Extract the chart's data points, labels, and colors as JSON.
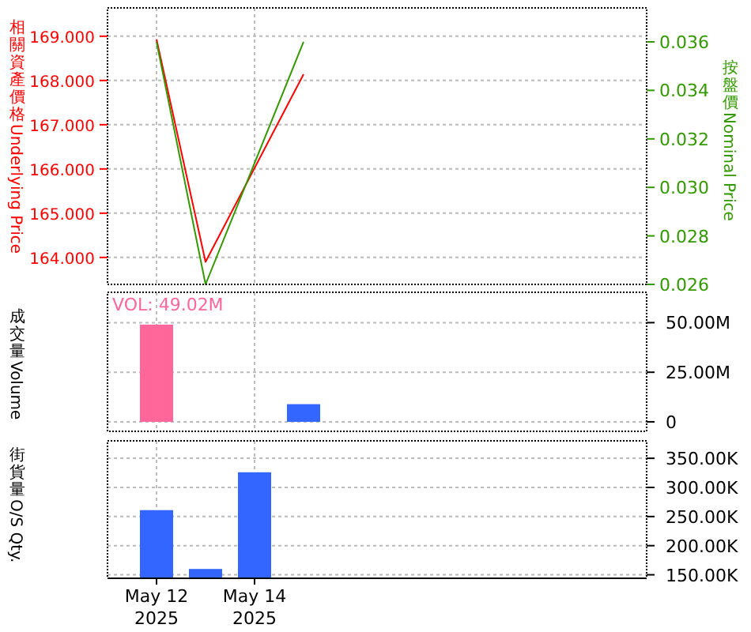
{
  "chart_data": [
    {
      "type": "line",
      "ylabel": "相關資產價格Underlying Price",
      "y2label": "按盤價Nominal Price",
      "xlim": [
        "2025-05-11",
        "2025-05-22"
      ],
      "xticks": [
        {
          "value": "2025-05-12",
          "label": null
        },
        {
          "value": "2025-05-14",
          "label": null
        }
      ],
      "ylim": [
        163.39,
        169.64
      ],
      "yticks": [
        {
          "value": 164,
          "label": "164.000"
        },
        {
          "value": 165,
          "label": "165.000"
        },
        {
          "value": 166,
          "label": "166.000"
        },
        {
          "value": 167,
          "label": "167.000"
        },
        {
          "value": 168,
          "label": "168.000"
        },
        {
          "value": 169,
          "label": "169.000"
        }
      ],
      "y2lim": [
        0.026,
        0.0374
      ],
      "y2ticks": [
        {
          "value": 0.026,
          "label": "0.026"
        },
        {
          "value": 0.028,
          "label": "0.028"
        },
        {
          "value": 0.03,
          "label": "0.030"
        },
        {
          "value": 0.032,
          "label": "0.032"
        },
        {
          "value": 0.034,
          "label": "0.034"
        },
        {
          "value": 0.036,
          "label": "0.036"
        }
      ],
      "grid": true,
      "tick_labels": "y",
      "series": [
        {
          "color": "#ff0000",
          "x": [
            "2025-05-12",
            "2025-05-13",
            "2025-05-15"
          ],
          "values": [
            168.93,
            163.9,
            168.14
          ]
        },
        {
          "color": "#339900",
          "axis": "y2",
          "x": [
            "2025-05-12",
            "2025-05-13",
            "2025-05-15"
          ],
          "values": [
            0.036,
            0.026,
            0.036
          ]
        }
      ]
    },
    {
      "type": "bar",
      "ylabel": "成交量Volume",
      "annotations": [
        {
          "text": "VOL: 49.02M",
          "x": "2025-05-12",
          "y": 49020000
        }
      ],
      "xlim": [
        "2025-05-11",
        "2025-05-22"
      ],
      "xticks": [
        {
          "value": "2025-05-12",
          "label": null
        },
        {
          "value": "2025-05-14",
          "label": null
        }
      ],
      "ylim": [
        -4800000,
        65300000
      ],
      "yticks": [
        {
          "value": 0,
          "label": "0"
        },
        {
          "value": 25000000,
          "label": "25.00M"
        },
        {
          "value": 50000000,
          "label": "50.00M"
        }
      ],
      "grid": true,
      "tick_labels": "y",
      "x": [
        "2025-05-12",
        "2025-05-15"
      ],
      "values": [
        49020000,
        8900000
      ],
      "colors": [
        "#ff6699",
        "#3366ff"
      ]
    },
    {
      "type": "bar",
      "ylabel": "街貨量O/S Qty.",
      "xlim": [
        "2025-05-11",
        "2025-05-22"
      ],
      "xticks": [
        {
          "value": "2025-05-12",
          "label": "May 12\n2025"
        },
        {
          "value": "2025-05-14",
          "label": "May 14\n2025"
        }
      ],
      "ylim": [
        144000,
        380000
      ],
      "yticks": [
        {
          "value": 150000,
          "label": "150.00K"
        },
        {
          "value": 200000,
          "label": "200.00K"
        },
        {
          "value": 250000,
          "label": "250.00K"
        },
        {
          "value": 300000,
          "label": "300.00K"
        },
        {
          "value": 350000,
          "label": "350.00K"
        }
      ],
      "grid": true,
      "x": [
        "2025-05-12",
        "2025-05-13",
        "2025-05-14"
      ],
      "values": [
        261000,
        160000,
        326000
      ],
      "color": "#3366ff"
    }
  ]
}
